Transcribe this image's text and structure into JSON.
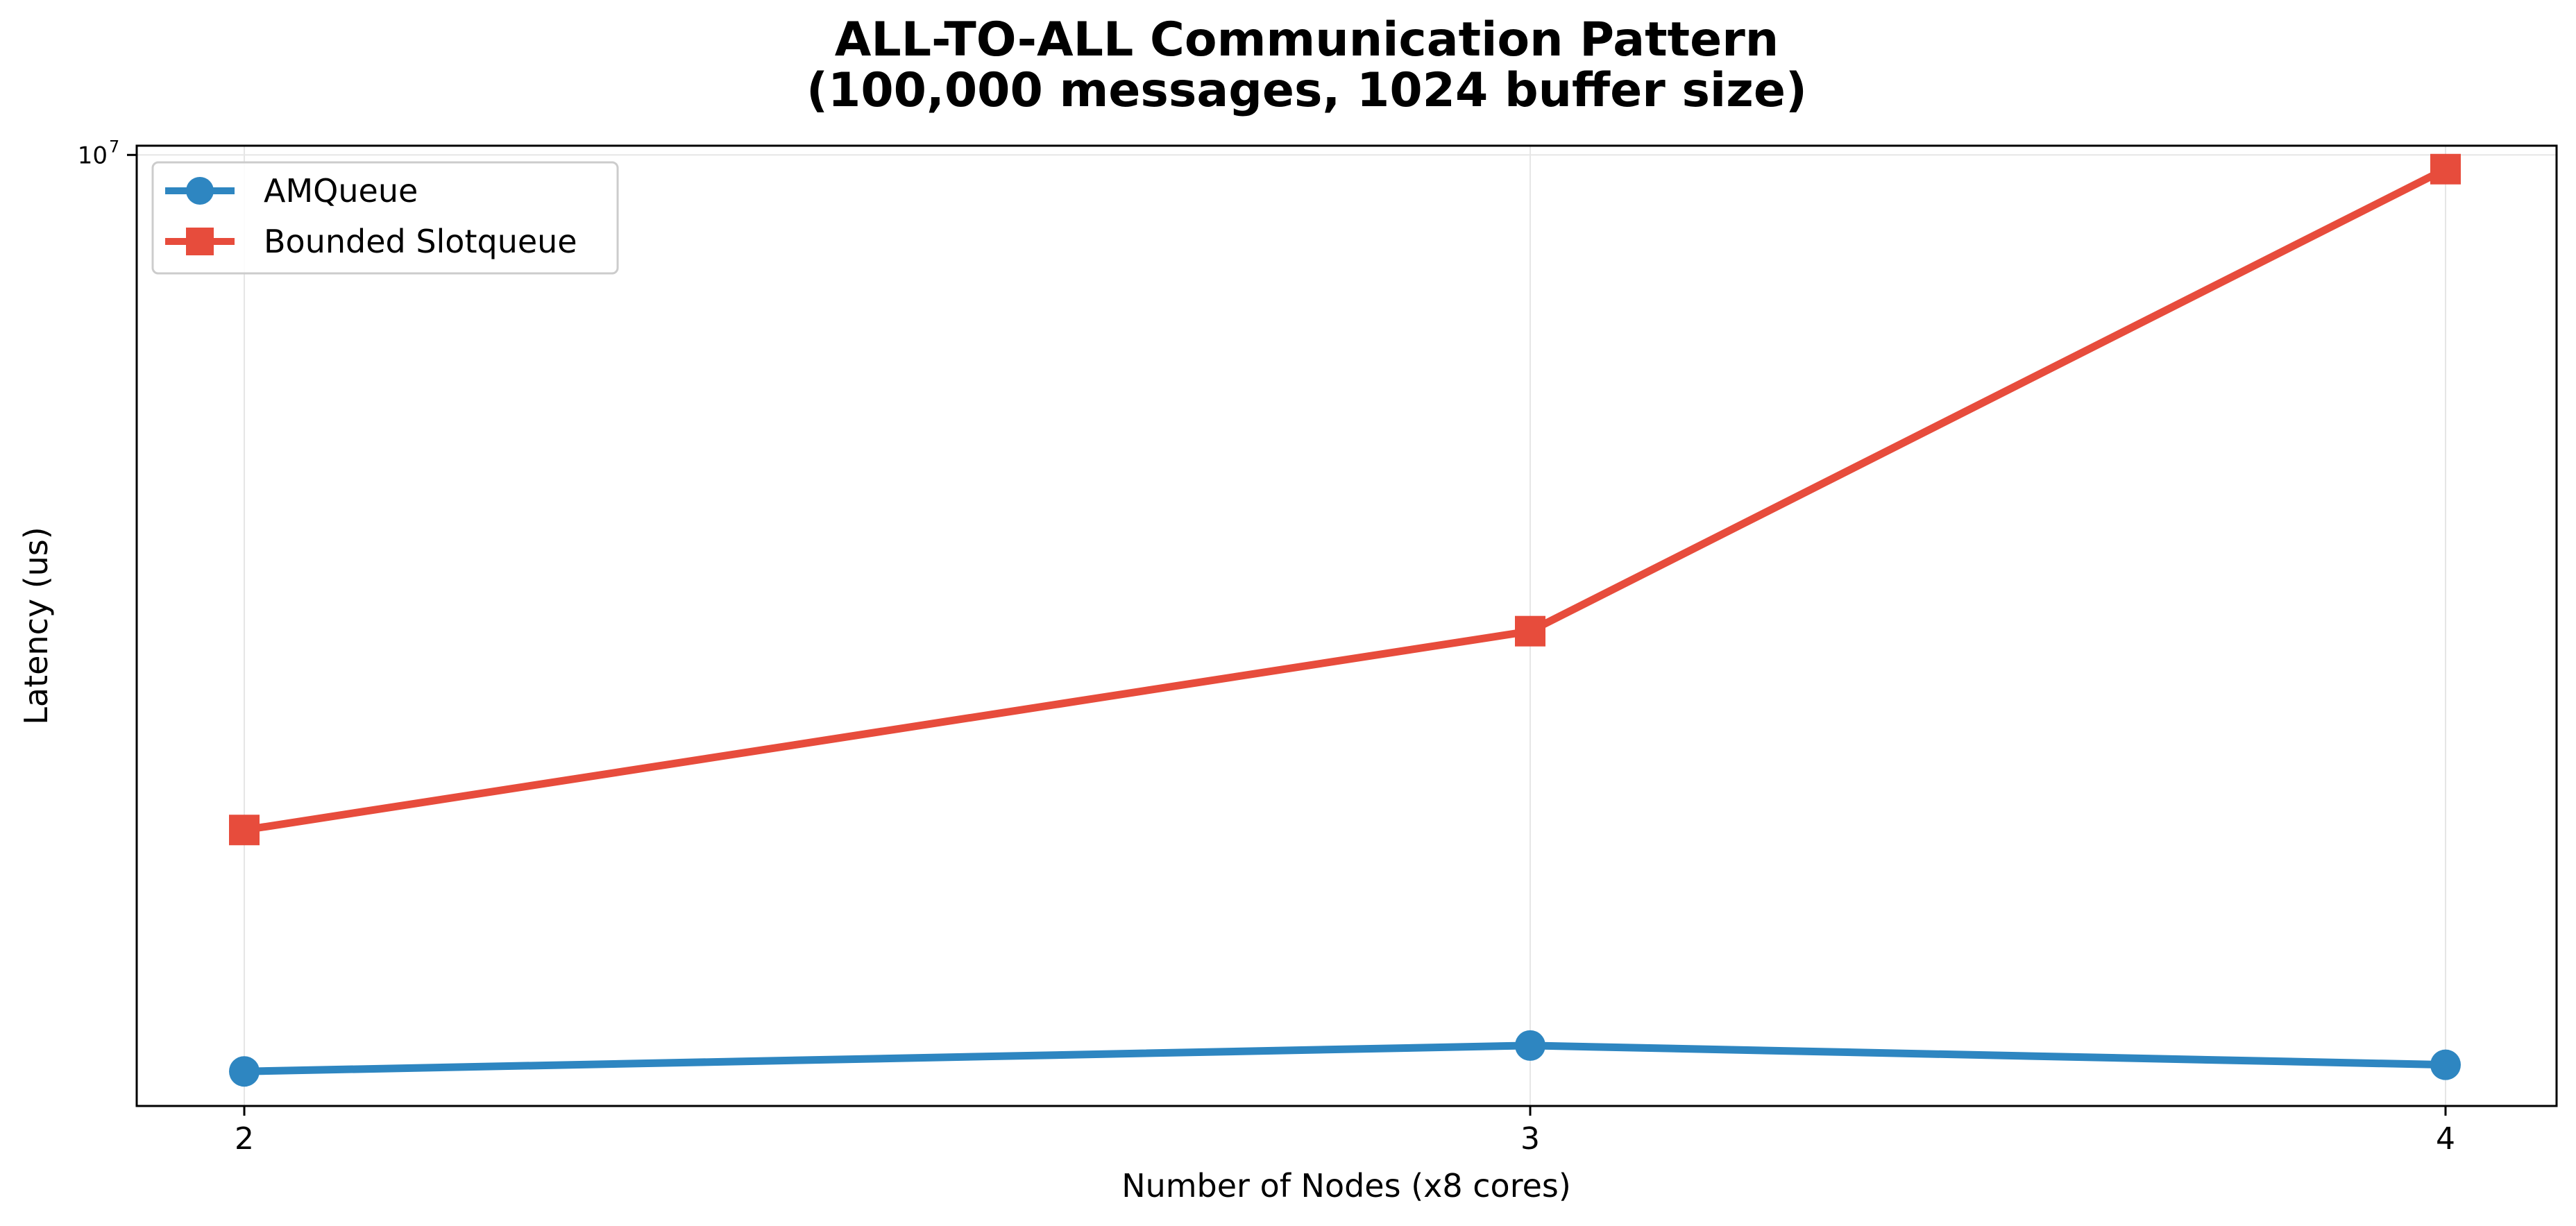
{
  "chart_data": {
    "type": "line",
    "title_lines": [
      "ALL-TO-ALL Communication Pattern",
      "(100,000 messages, 1024 buffer size)"
    ],
    "xlabel": "Number of Nodes (x8 cores)",
    "ylabel": "Latency (us)",
    "x": [
      2,
      3,
      4
    ],
    "x_tick_labels": [
      "2",
      "3",
      "4"
    ],
    "y_scale": "log",
    "ylim": [
      1300000,
      10200000
    ],
    "y_ticks": [
      {
        "base": "10",
        "exponent": "7",
        "value": 10000000
      }
    ],
    "grid": true,
    "legend_position": "upper-left",
    "series": [
      {
        "name": "AMQueue",
        "color": "#2E86C1",
        "marker": "circle",
        "values": [
          1400000,
          1480000,
          1420000
        ]
      },
      {
        "name": "Bounded Slotqueue",
        "color": "#E74C3C",
        "marker": "square",
        "values": [
          2350000,
          3600000,
          9700000
        ]
      }
    ]
  }
}
